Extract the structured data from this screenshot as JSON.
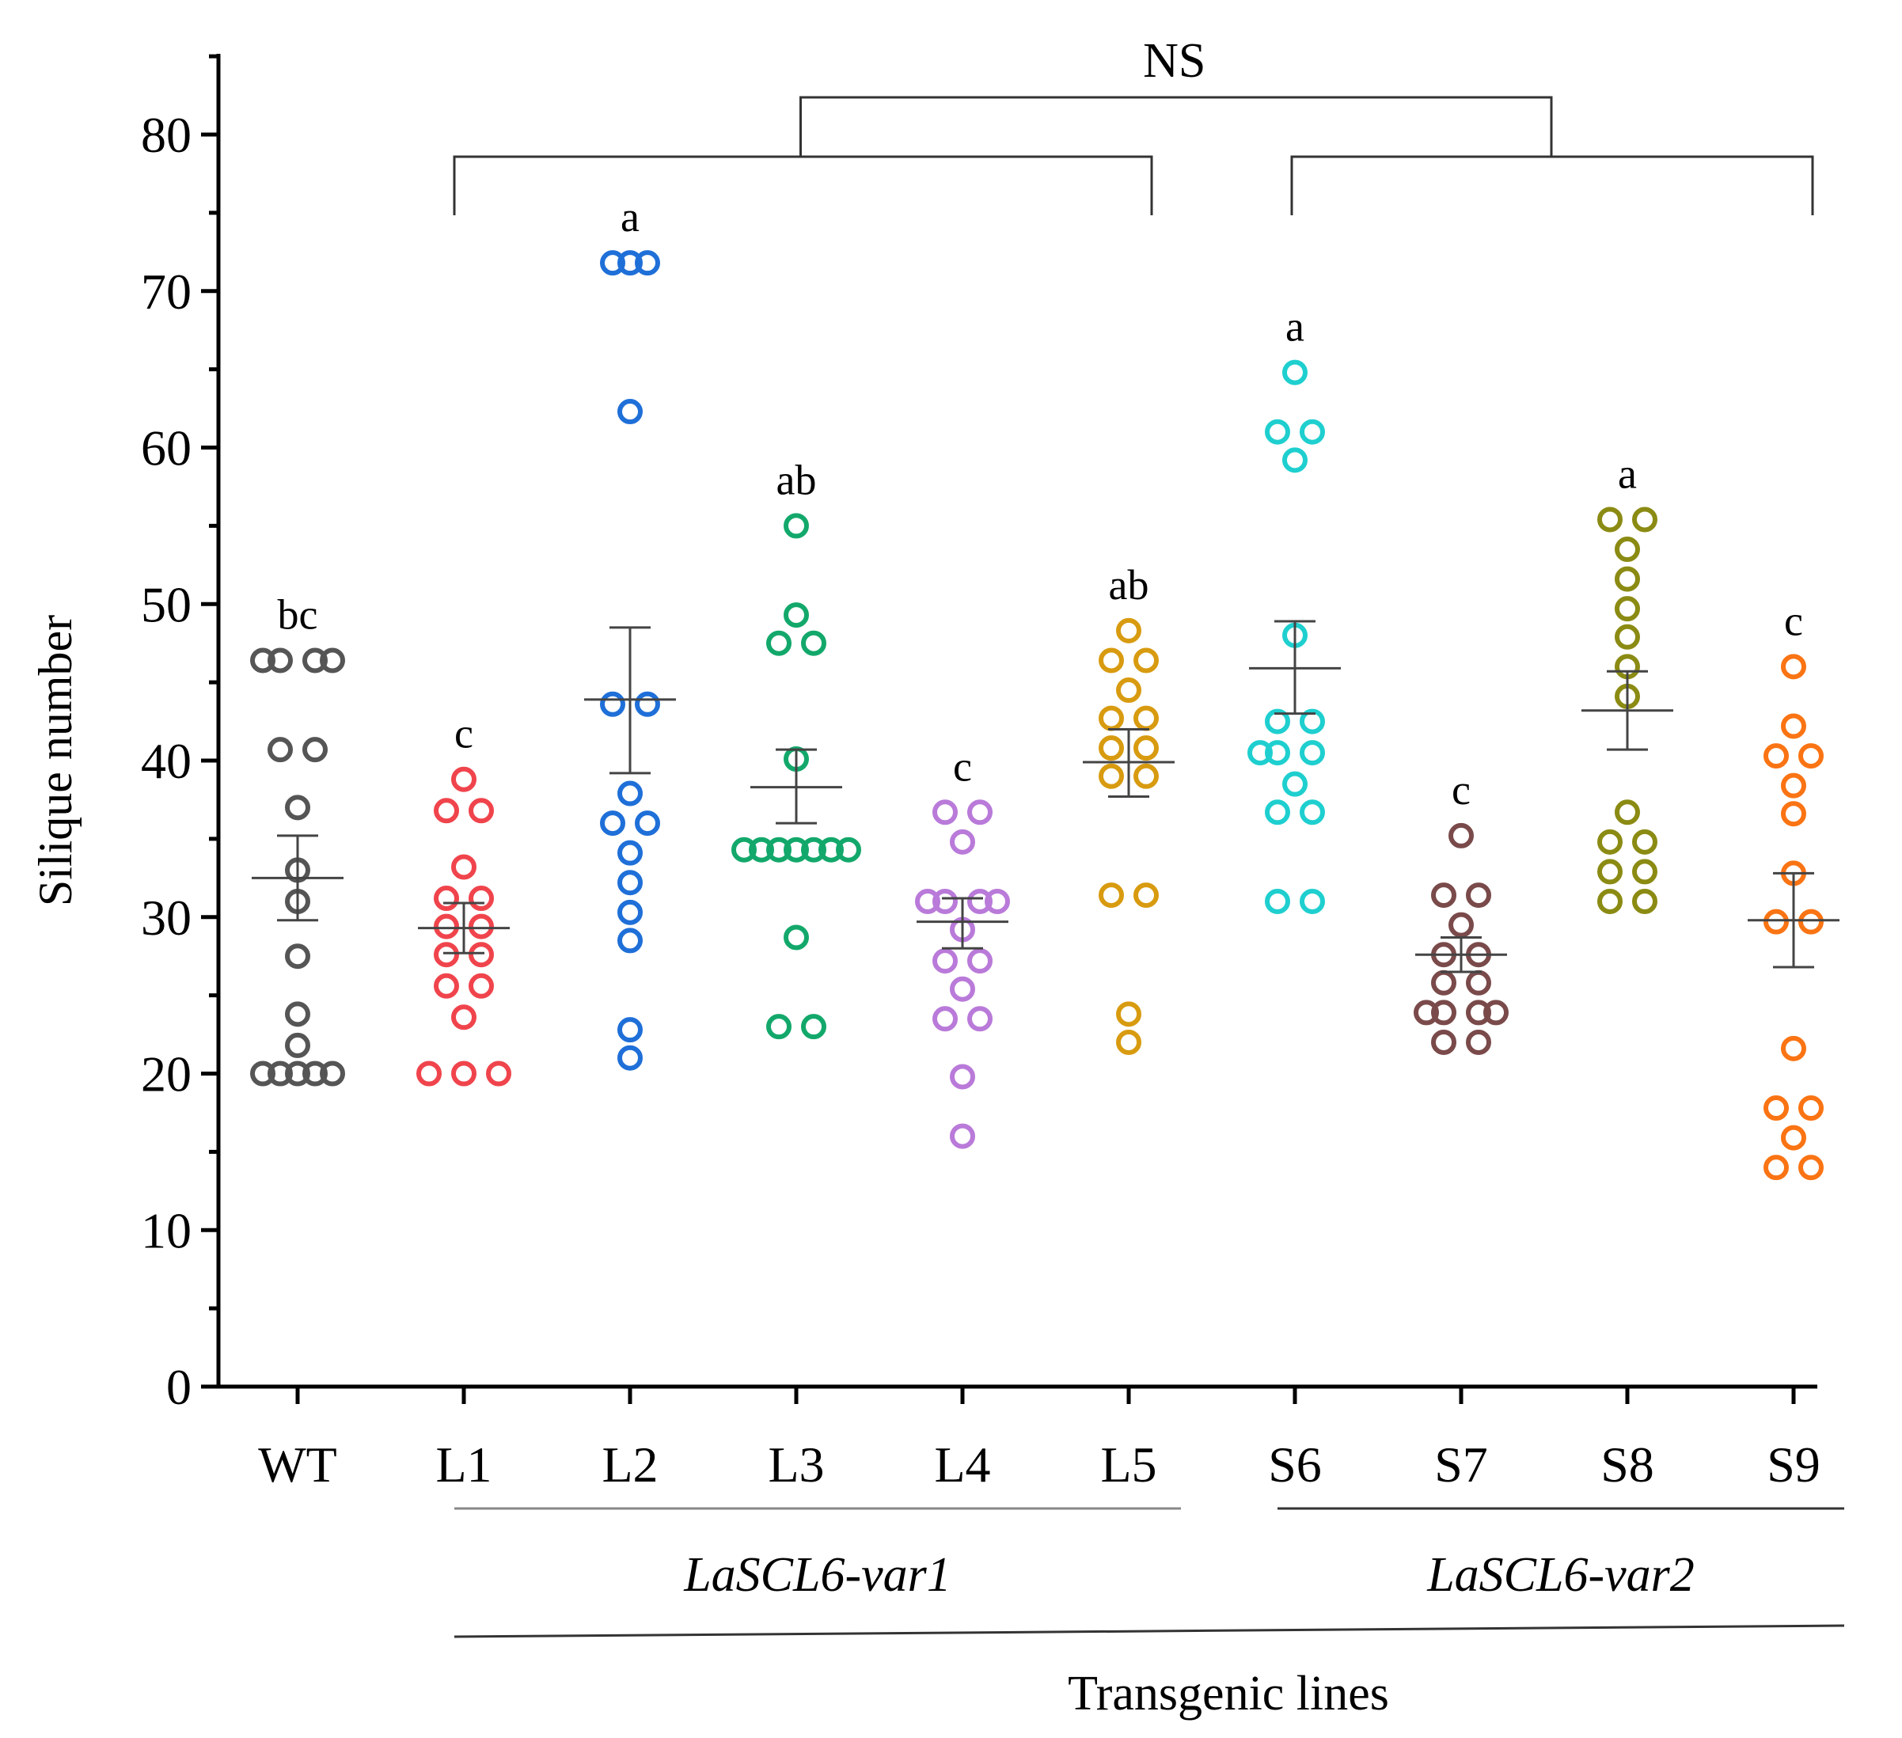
{
  "chart_data": {
    "type": "scatter",
    "ylabel": "Silique number",
    "xlabel": "Transgenic lines",
    "ylim": [
      0,
      85
    ],
    "yticks": [
      0,
      10,
      20,
      30,
      40,
      50,
      60,
      70,
      80
    ],
    "yminor_step": 5,
    "grid": false,
    "legend": "none",
    "categories": [
      "WT",
      "L1",
      "L2",
      "L3",
      "L4",
      "L5",
      "S6",
      "S7",
      "S8",
      "S9"
    ],
    "series": [
      {
        "category": "WT",
        "color": "#555555",
        "significance": "bc",
        "mean": 32.5,
        "sem": [
          29.8,
          35.2
        ],
        "points": [
          [
            -2,
            46.4
          ],
          [
            -1,
            46.4
          ],
          [
            1,
            46.4
          ],
          [
            2,
            46.4
          ],
          [
            -1,
            40.7
          ],
          [
            1,
            40.7
          ],
          [
            0,
            37.0
          ],
          [
            0,
            33.0
          ],
          [
            0,
            31.0
          ],
          [
            0,
            27.5
          ],
          [
            0,
            23.8
          ],
          [
            0,
            21.8
          ],
          [
            -2,
            20.0
          ],
          [
            -1,
            20.0
          ],
          [
            0,
            20.0
          ],
          [
            1,
            20.0
          ],
          [
            2,
            20.0
          ]
        ]
      },
      {
        "category": "L1",
        "color": "#f0444c",
        "significance": "c",
        "mean": 29.3,
        "sem": [
          27.7,
          30.9
        ],
        "points": [
          [
            0,
            38.8
          ],
          [
            -1,
            36.8
          ],
          [
            1,
            36.8
          ],
          [
            0,
            33.2
          ],
          [
            -1,
            31.2
          ],
          [
            1,
            31.2
          ],
          [
            -1,
            29.4
          ],
          [
            1,
            29.4
          ],
          [
            -1,
            27.6
          ],
          [
            1,
            27.6
          ],
          [
            -1,
            25.6
          ],
          [
            1,
            25.6
          ],
          [
            0,
            23.6
          ],
          [
            -2,
            20.0
          ],
          [
            0,
            20.0
          ],
          [
            2,
            20.0
          ]
        ]
      },
      {
        "category": "L2",
        "color": "#1f6fd8",
        "significance": "a",
        "mean": 43.9,
        "sem": [
          39.2,
          48.5
        ],
        "points": [
          [
            -1,
            71.8
          ],
          [
            0,
            71.8
          ],
          [
            1,
            71.8
          ],
          [
            0,
            62.3
          ],
          [
            -1,
            43.6
          ],
          [
            1,
            43.6
          ],
          [
            0,
            37.9
          ],
          [
            -1,
            36.0
          ],
          [
            1,
            36.0
          ],
          [
            0,
            34.1
          ],
          [
            0,
            32.2
          ],
          [
            0,
            30.3
          ],
          [
            0,
            28.5
          ],
          [
            0,
            22.8
          ],
          [
            0,
            21.0
          ]
        ]
      },
      {
        "category": "L3",
        "color": "#13a86b",
        "significance": "ab",
        "mean": 38.3,
        "sem": [
          36.0,
          40.7
        ],
        "points": [
          [
            0,
            55.0
          ],
          [
            0,
            49.3
          ],
          [
            -1,
            47.5
          ],
          [
            1,
            47.5
          ],
          [
            0,
            40.1
          ],
          [
            -3,
            34.3
          ],
          [
            -2,
            34.3
          ],
          [
            -1,
            34.3
          ],
          [
            0,
            34.3
          ],
          [
            1,
            34.3
          ],
          [
            2,
            34.3
          ],
          [
            3,
            34.3
          ],
          [
            0,
            28.7
          ],
          [
            -1,
            23.0
          ],
          [
            1,
            23.0
          ]
        ]
      },
      {
        "category": "L4",
        "color": "#b97ad9",
        "significance": "c",
        "mean": 29.7,
        "sem": [
          28.0,
          31.2
        ],
        "points": [
          [
            -1,
            36.7
          ],
          [
            1,
            36.7
          ],
          [
            0,
            34.8
          ],
          [
            -1,
            31.0
          ],
          [
            1,
            31.0
          ],
          [
            -2,
            31.0
          ],
          [
            2,
            31.0
          ],
          [
            0,
            29.2
          ],
          [
            -1,
            27.2
          ],
          [
            1,
            27.2
          ],
          [
            0,
            25.4
          ],
          [
            -1,
            23.5
          ],
          [
            1,
            23.5
          ],
          [
            0,
            19.8
          ],
          [
            0,
            16.0
          ]
        ]
      },
      {
        "category": "L5",
        "color": "#d89b10",
        "significance": "ab",
        "mean": 39.9,
        "sem": [
          37.7,
          42.0
        ],
        "points": [
          [
            0,
            48.3
          ],
          [
            -1,
            46.4
          ],
          [
            1,
            46.4
          ],
          [
            0,
            44.5
          ],
          [
            -1,
            42.7
          ],
          [
            1,
            42.7
          ],
          [
            -1,
            40.8
          ],
          [
            1,
            40.8
          ],
          [
            -1,
            39.0
          ],
          [
            1,
            39.0
          ],
          [
            -1,
            31.4
          ],
          [
            1,
            31.4
          ],
          [
            0,
            23.8
          ],
          [
            0,
            22.0
          ]
        ]
      },
      {
        "category": "S6",
        "color": "#1fcfcf",
        "significance": "a",
        "mean": 45.9,
        "sem": [
          43.0,
          48.9
        ],
        "points": [
          [
            0,
            64.8
          ],
          [
            -1,
            61.0
          ],
          [
            1,
            61.0
          ],
          [
            0,
            59.2
          ],
          [
            0,
            48.0
          ],
          [
            -1,
            42.5
          ],
          [
            1,
            42.5
          ],
          [
            -1,
            40.5
          ],
          [
            1,
            40.5
          ],
          [
            -2,
            40.5
          ],
          [
            0,
            38.5
          ],
          [
            -1,
            36.7
          ],
          [
            1,
            36.7
          ],
          [
            -1,
            31.0
          ],
          [
            1,
            31.0
          ]
        ]
      },
      {
        "category": "S7",
        "color": "#7a4a4a",
        "significance": "c",
        "mean": 27.6,
        "sem": [
          26.5,
          28.7
        ],
        "points": [
          [
            0,
            35.2
          ],
          [
            -1,
            31.4
          ],
          [
            1,
            31.4
          ],
          [
            0,
            29.5
          ],
          [
            -1,
            27.6
          ],
          [
            1,
            27.6
          ],
          [
            -1,
            25.8
          ],
          [
            1,
            25.8
          ],
          [
            -1,
            23.9
          ],
          [
            1,
            23.9
          ],
          [
            -2,
            23.9
          ],
          [
            2,
            23.9
          ],
          [
            -1,
            22.0
          ],
          [
            1,
            22.0
          ]
        ]
      },
      {
        "category": "S8",
        "color": "#8b8b14",
        "significance": "a",
        "mean": 43.2,
        "sem": [
          40.7,
          45.7
        ],
        "points": [
          [
            -1,
            55.4
          ],
          [
            1,
            55.4
          ],
          [
            0,
            53.5
          ],
          [
            0,
            51.6
          ],
          [
            0,
            49.7
          ],
          [
            0,
            47.9
          ],
          [
            0,
            46.0
          ],
          [
            0,
            44.1
          ],
          [
            0,
            36.7
          ],
          [
            -1,
            34.8
          ],
          [
            1,
            34.8
          ],
          [
            -1,
            32.9
          ],
          [
            1,
            32.9
          ],
          [
            -1,
            31.0
          ],
          [
            1,
            31.0
          ]
        ]
      },
      {
        "category": "S9",
        "color": "#fa7414",
        "significance": "c",
        "mean": 29.8,
        "sem": [
          26.8,
          32.8
        ],
        "points": [
          [
            0,
            46.0
          ],
          [
            0,
            42.2
          ],
          [
            -1,
            40.3
          ],
          [
            1,
            40.3
          ],
          [
            0,
            38.4
          ],
          [
            0,
            36.6
          ],
          [
            0,
            32.8
          ],
          [
            -1,
            29.7
          ],
          [
            1,
            29.7
          ],
          [
            0,
            21.6
          ],
          [
            -1,
            17.8
          ],
          [
            1,
            17.8
          ],
          [
            0,
            15.9
          ],
          [
            -1,
            14.0
          ],
          [
            1,
            14.0
          ]
        ]
      }
    ],
    "groups": [
      {
        "label": "LaSCL6-var1",
        "categories": [
          "L1",
          "L2",
          "L3",
          "L4",
          "L5"
        ]
      },
      {
        "label": "LaSCL6-var2",
        "categories": [
          "S6",
          "S7",
          "S8",
          "S9"
        ]
      }
    ],
    "comparison_label": "NS"
  }
}
